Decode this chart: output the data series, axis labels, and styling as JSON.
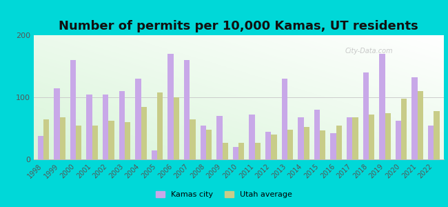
{
  "title": "Number of permits per 10,000 Kamas, UT residents",
  "years": [
    1998,
    1999,
    2000,
    2001,
    2002,
    2003,
    2004,
    2005,
    2006,
    2007,
    2008,
    2009,
    2010,
    2011,
    2012,
    2013,
    2014,
    2015,
    2016,
    2017,
    2018,
    2019,
    2020,
    2021,
    2022
  ],
  "kamas_city": [
    38,
    115,
    160,
    105,
    105,
    110,
    130,
    15,
    170,
    160,
    55,
    70,
    20,
    72,
    45,
    130,
    68,
    80,
    42,
    68,
    140,
    170,
    62,
    132,
    55
  ],
  "utah_avg": [
    65,
    68,
    55,
    55,
    62,
    60,
    85,
    108,
    100,
    65,
    48,
    27,
    27,
    27,
    40,
    48,
    52,
    47,
    55,
    68,
    72,
    75,
    98,
    110,
    78
  ],
  "kamas_color": "#c8a8e8",
  "utah_color": "#c8cc88",
  "outer_bg": "#00d8d8",
  "ylim": [
    0,
    200
  ],
  "yticks": [
    0,
    100,
    200
  ],
  "title_fontsize": 13,
  "legend_kamas": "Kamas city",
  "legend_utah": "Utah average",
  "bg_colors": [
    "#d8f0d0",
    "#f8fef4"
  ],
  "watermark": "City-Data.com"
}
